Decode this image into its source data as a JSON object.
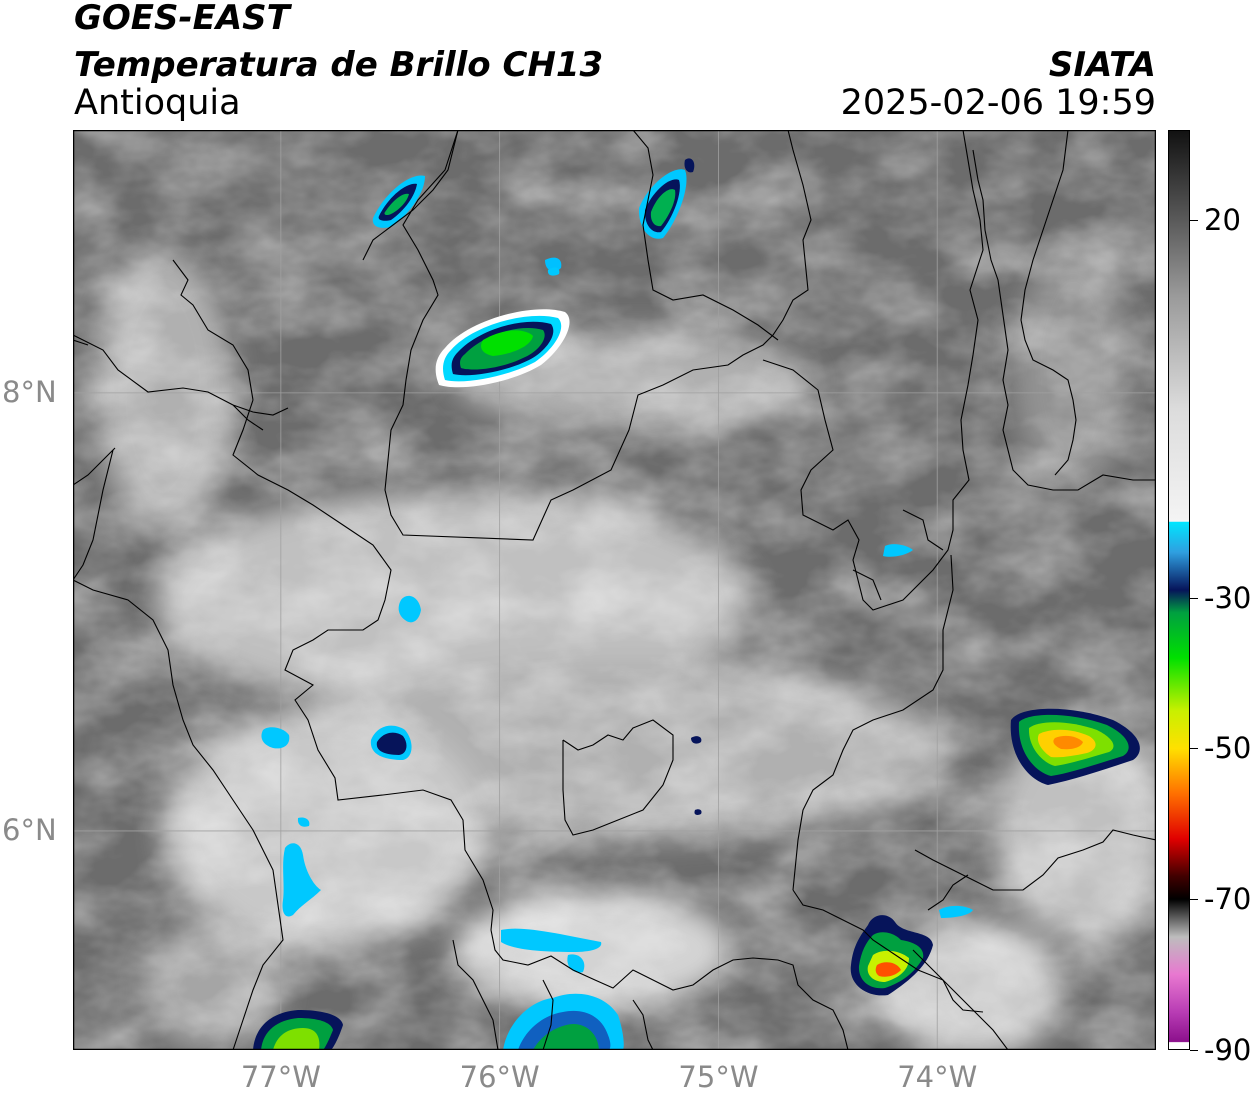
{
  "header": {
    "title_line1": "GOES-EAST",
    "title_line2": "Temperatura de Brillo CH13",
    "region": "Antioquia",
    "agency": "SIATA",
    "datetime": "2025-02-06 19:59"
  },
  "map": {
    "lon_range": [
      -77.95,
      -73.0
    ],
    "lat_range": [
      5.0,
      9.2
    ],
    "lat_ticks": [
      {
        "value": 8,
        "label": "8°N"
      },
      {
        "value": 6,
        "label": "6°N"
      }
    ],
    "lon_ticks": [
      {
        "value": -77,
        "label": "77°W"
      },
      {
        "value": -76,
        "label": "76°W"
      },
      {
        "value": -75,
        "label": "75°W"
      },
      {
        "value": -74,
        "label": "74°W"
      }
    ],
    "base_color": "#6f6f6f",
    "border_color": "#000000",
    "grid_color": "#a0a0a0"
  },
  "colorbar": {
    "range": [
      -90,
      32
    ],
    "ticks": [
      {
        "value": 20,
        "label": "20"
      },
      {
        "value": -30,
        "label": "-30"
      },
      {
        "value": -50,
        "label": "-50"
      },
      {
        "value": -70,
        "label": "-70"
      },
      {
        "value": -90,
        "label": "-90"
      }
    ],
    "stops": [
      {
        "value": 32,
        "color": "#111111"
      },
      {
        "value": 20,
        "color": "#5a5a5a"
      },
      {
        "value": 10,
        "color": "#9a9a9a"
      },
      {
        "value": -5,
        "color": "#dcdcdc"
      },
      {
        "value": -19.9,
        "color": "#f4f4f4"
      },
      {
        "value": -20,
        "color": "#00e5ff"
      },
      {
        "value": -24,
        "color": "#2f9fe0"
      },
      {
        "value": -29,
        "color": "#06145a"
      },
      {
        "value": -32,
        "color": "#00a040"
      },
      {
        "value": -38,
        "color": "#00e000"
      },
      {
        "value": -45,
        "color": "#c8f000"
      },
      {
        "value": -50,
        "color": "#ffe000"
      },
      {
        "value": -56,
        "color": "#ff7000"
      },
      {
        "value": -62,
        "color": "#e00000"
      },
      {
        "value": -67,
        "color": "#400000"
      },
      {
        "value": -70,
        "color": "#000000"
      },
      {
        "value": -75,
        "color": "#bdbdbd"
      },
      {
        "value": -80,
        "color": "#e878d0"
      },
      {
        "value": -85,
        "color": "#b83cb4"
      },
      {
        "value": -88.9,
        "color": "#8c108c"
      },
      {
        "value": -89,
        "color": "#ffffff"
      },
      {
        "value": -90,
        "color": "#ffffff"
      }
    ]
  }
}
